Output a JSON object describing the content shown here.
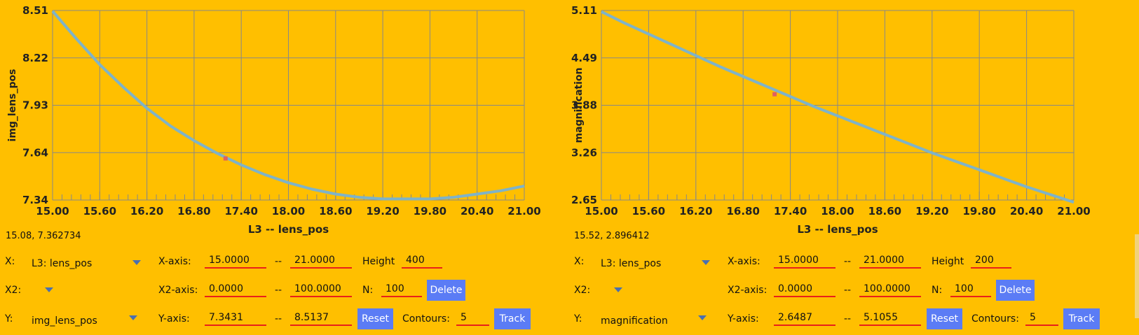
{
  "colors": {
    "background": "#FFBF00",
    "grid": "#888888",
    "curve": "#7fb3c8",
    "marker": "#e06060",
    "button": "#5b7cf5",
    "underline": "#e8201a"
  },
  "chart_data": [
    {
      "type": "line",
      "xlabel": "L3 -- lens_pos",
      "ylabel": "img_lens_pos",
      "xlim": [
        15.0,
        21.0
      ],
      "ylim": [
        7.3431,
        8.5137
      ],
      "x_ticks": [
        "15.00",
        "15.60",
        "16.20",
        "16.80",
        "17.40",
        "18.00",
        "18.60",
        "19.20",
        "19.80",
        "20.40",
        "21.00"
      ],
      "y_ticks": [
        "8.51",
        "8.22",
        "7.93",
        "7.64",
        "7.34"
      ],
      "grid": true,
      "series": [
        {
          "x": [
            15.0,
            15.3,
            15.6,
            15.9,
            16.2,
            16.5,
            16.8,
            17.1,
            17.4,
            17.7,
            18.0,
            18.3,
            18.6,
            18.9,
            19.2,
            19.5,
            19.8,
            20.1,
            20.4,
            20.7,
            21.0
          ],
          "y": [
            8.51,
            8.34,
            8.18,
            8.04,
            7.91,
            7.8,
            7.71,
            7.63,
            7.56,
            7.5,
            7.45,
            7.41,
            7.38,
            7.36,
            7.35,
            7.35,
            7.35,
            7.36,
            7.38,
            7.4,
            7.43
          ]
        }
      ],
      "marker": {
        "x": 17.2,
        "y": 7.6
      }
    },
    {
      "type": "line",
      "xlabel": "L3 -- lens_pos",
      "ylabel": "magnification",
      "xlim": [
        15.0,
        21.0
      ],
      "ylim": [
        2.6487,
        5.1055
      ],
      "x_ticks": [
        "15.00",
        "15.60",
        "16.20",
        "16.80",
        "17.40",
        "18.00",
        "18.60",
        "19.20",
        "19.80",
        "20.40",
        "21.00"
      ],
      "y_ticks": [
        "5.11",
        "4.49",
        "3.88",
        "3.26",
        "2.65"
      ],
      "grid": true,
      "series": [
        {
          "x": [
            15.0,
            15.3,
            15.6,
            15.9,
            16.2,
            16.5,
            16.8,
            17.1,
            17.4,
            17.7,
            18.0,
            18.3,
            18.6,
            18.9,
            19.2,
            19.5,
            19.8,
            20.1,
            20.4,
            20.7,
            21.0
          ],
          "y": [
            5.09,
            4.94,
            4.8,
            4.66,
            4.52,
            4.38,
            4.25,
            4.12,
            3.99,
            3.86,
            3.74,
            3.62,
            3.5,
            3.38,
            3.26,
            3.15,
            3.04,
            2.93,
            2.82,
            2.72,
            2.62
          ]
        }
      ],
      "marker": {
        "x": 17.2,
        "y": 4.02
      }
    }
  ],
  "left": {
    "readout": "15.08, 7.362734",
    "x_label": "X:",
    "x_value": "L3: lens_pos",
    "x2_label": "X2:",
    "y_label": "Y:",
    "y_value": "img_lens_pos",
    "xaxis_label": "X-axis:",
    "xaxis_min": "15.0000",
    "xaxis_max": "21.0000",
    "x2axis_label": "X2-axis:",
    "x2axis_min": "0.0000",
    "x2axis_max": "100.0000",
    "yaxis_label": "Y-axis:",
    "yaxis_min": "7.3431",
    "yaxis_max": "8.5137",
    "dash": "--",
    "height_label": "Height",
    "height_value": "400",
    "n_label": "N:",
    "n_value": "100",
    "contours_label": "Contours:",
    "contours_value": "5",
    "delete": "Delete",
    "reset": "Reset",
    "track": "Track"
  },
  "right": {
    "readout": "15.52, 2.896412",
    "x_label": "X:",
    "x_value": "L3: lens_pos",
    "x2_label": "X2:",
    "y_label": "Y:",
    "y_value": "magnification",
    "xaxis_label": "X-axis:",
    "xaxis_min": "15.0000",
    "xaxis_max": "21.0000",
    "x2axis_label": "X2-axis:",
    "x2axis_min": "0.0000",
    "x2axis_max": "100.0000",
    "yaxis_label": "Y-axis:",
    "yaxis_min": "2.6487",
    "yaxis_max": "5.1055",
    "dash": "--",
    "height_label": "Height",
    "height_value": "200",
    "n_label": "N:",
    "n_value": "100",
    "contours_label": "Contours:",
    "contours_value": "5",
    "delete": "Delete",
    "reset": "Reset",
    "track": "Track"
  }
}
